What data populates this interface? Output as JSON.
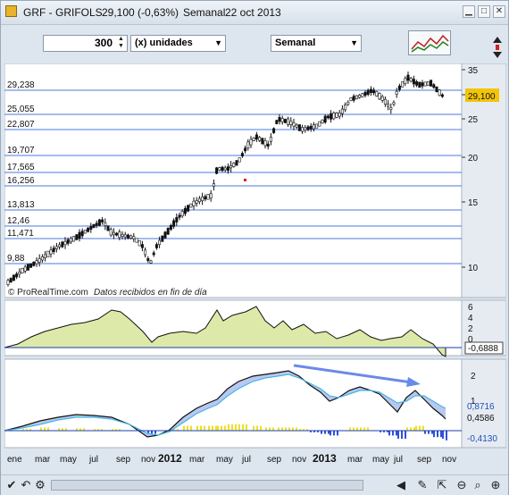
{
  "window": {
    "title_symbol": "GRF - GRIFOLS",
    "title_price": "29,100 (-0,63%)",
    "title_period": "Semanal",
    "title_date": "22 oct 2013"
  },
  "toolbar": {
    "quantity_value": "300",
    "units_select": "(x) unidades",
    "period_select": "Semanal"
  },
  "price_panel": {
    "watermark": "© ProRealTime.com",
    "watermark_note": "Datos recibidos en fin de día",
    "current_price_label": "29,100",
    "axis_ticks": [
      "35",
      "30",
      "25",
      "20",
      "15",
      "10"
    ],
    "horizontal_levels": [
      "29,238",
      "25,055",
      "22,807",
      "19,707",
      "17,565",
      "16,256",
      "13,813",
      "12,46",
      "11,471",
      "9,88"
    ]
  },
  "indicator1": {
    "axis_ticks": [
      "6",
      "4",
      "2",
      "0"
    ],
    "value_label": "-0,6888"
  },
  "indicator2": {
    "axis_ticks": [
      "2",
      "1"
    ],
    "value_labels": [
      "0,8716",
      "0,4586",
      "-0,4130"
    ]
  },
  "time_axis": {
    "labels": [
      "ene",
      "mar",
      "may",
      "jul",
      "sep",
      "nov",
      "2012",
      "mar",
      "may",
      "jul",
      "sep",
      "nov",
      "2013",
      "mar",
      "may",
      "jul",
      "sep",
      "nov"
    ]
  },
  "colors": {
    "price_level_line": "#4a7adf",
    "area_fill": "#dde9a8",
    "histogram_up": "#f0e020",
    "histogram_down": "#3050d8",
    "arrow": "#6a8ae8",
    "current_price_bg": "#f2c40a"
  }
}
